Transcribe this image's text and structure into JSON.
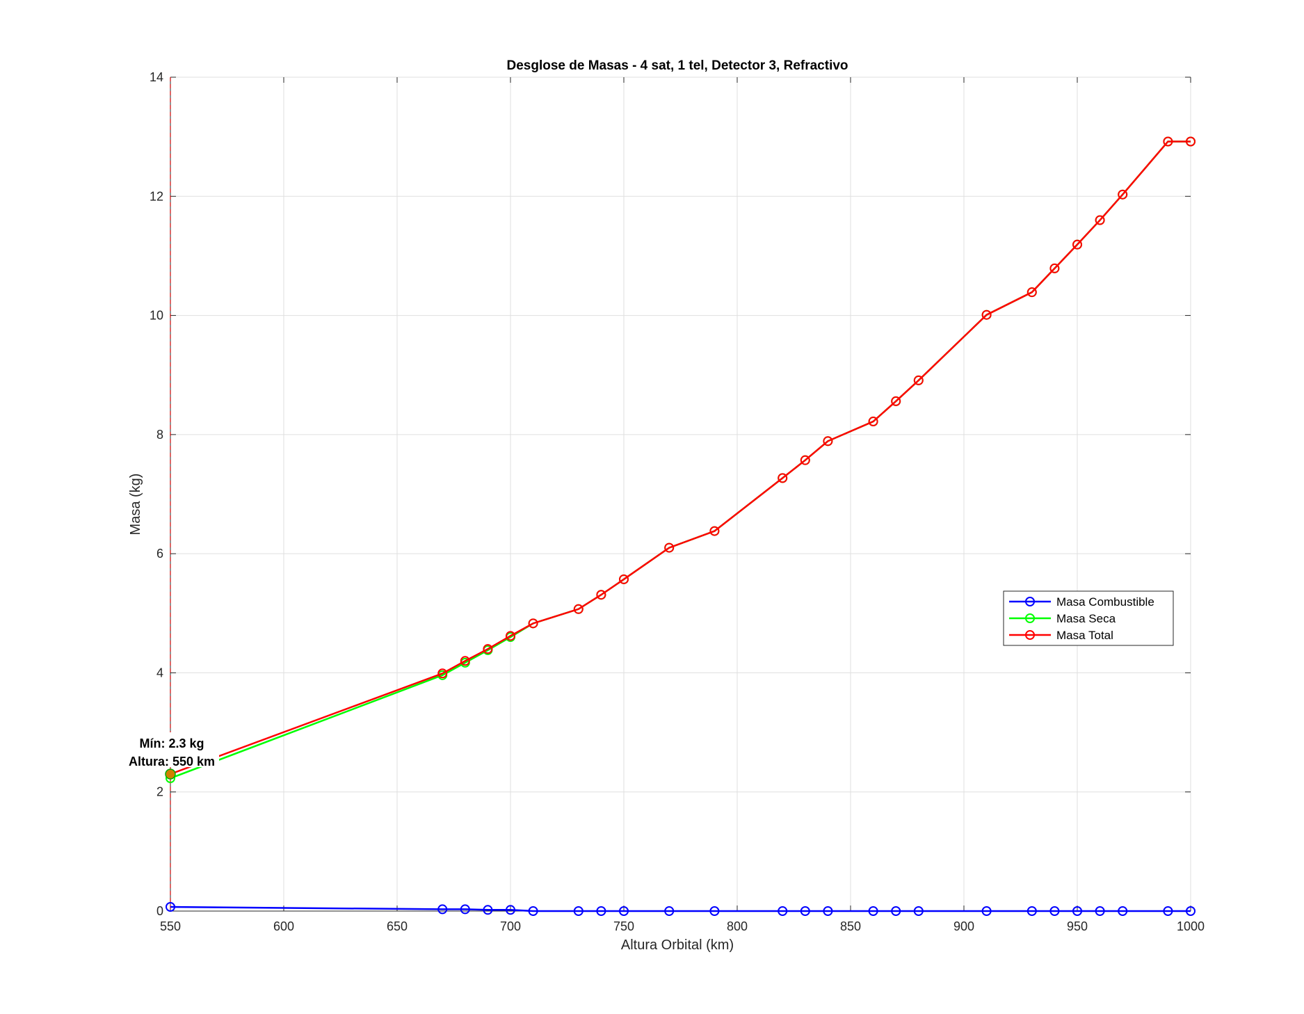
{
  "chart_data": {
    "type": "line",
    "title": "Desglose de Masas - 4 sat, 1 tel, Detector 3, Refractivo",
    "xlabel": "Altura Orbital (km)",
    "ylabel": "Masa (kg)",
    "xlim": [
      550,
      1000
    ],
    "ylim": [
      0,
      14
    ],
    "xticks": [
      550,
      600,
      650,
      700,
      750,
      800,
      850,
      900,
      950,
      1000
    ],
    "yticks": [
      0,
      2,
      4,
      6,
      8,
      10,
      12,
      14
    ],
    "grid": true,
    "legend_position": "right-middle",
    "x": [
      550,
      670,
      680,
      690,
      700,
      710,
      730,
      740,
      750,
      770,
      790,
      820,
      830,
      840,
      860,
      870,
      880,
      910,
      930,
      940,
      950,
      960,
      970,
      990,
      1000
    ],
    "series": [
      {
        "name": "Masa Combustible",
        "color": "#0000ff",
        "values": [
          0.07,
          0.03,
          0.03,
          0.02,
          0.02,
          0.0,
          0.0,
          0.0,
          0.0,
          0.0,
          0.0,
          0.0,
          0.0,
          0.0,
          0.0,
          0.0,
          0.0,
          0.0,
          0.0,
          0.0,
          0.0,
          0.0,
          0.0,
          0.0,
          0.0
        ]
      },
      {
        "name": "Masa Seca",
        "color": "#00ff00",
        "values": [
          2.23,
          3.96,
          4.17,
          4.38,
          4.6,
          4.83,
          5.07,
          5.31,
          5.57,
          6.1,
          6.38,
          7.27,
          7.57,
          7.89,
          8.22,
          8.56,
          8.91,
          10.01,
          10.39,
          10.79,
          11.19,
          11.6,
          12.03,
          12.92,
          12.92
        ]
      },
      {
        "name": "Masa Total",
        "color": "#ff0000",
        "values": [
          2.3,
          3.99,
          4.2,
          4.4,
          4.62,
          4.83,
          5.07,
          5.31,
          5.57,
          6.1,
          6.38,
          7.27,
          7.57,
          7.89,
          8.22,
          8.56,
          8.91,
          10.01,
          10.39,
          10.79,
          11.19,
          11.6,
          12.03,
          12.92,
          12.92
        ]
      }
    ],
    "annotations": [
      {
        "x": 550,
        "y": 2.3,
        "lines": [
          "Mín: 2.3 kg",
          "Altura: 550 km"
        ]
      }
    ],
    "min_marker_line_x": 550
  }
}
